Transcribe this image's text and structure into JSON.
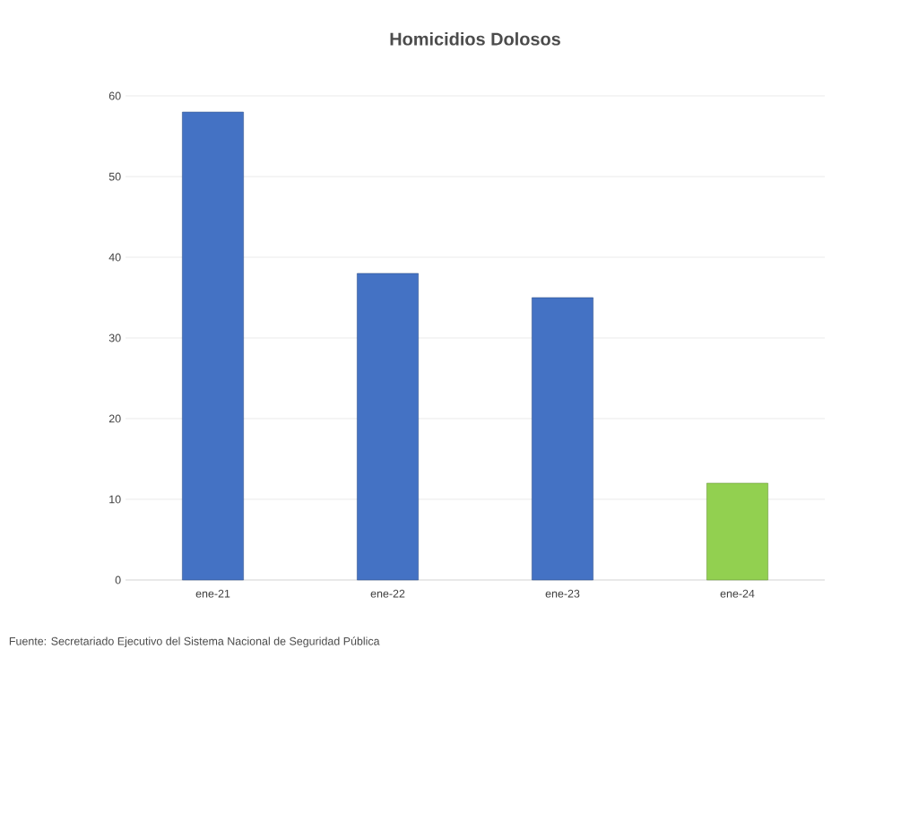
{
  "chart_data": {
    "type": "bar",
    "title": "Homicidios Dolosos",
    "categories": [
      "ene-21",
      "ene-22",
      "ene-23",
      "ene-24"
    ],
    "values": [
      58,
      38,
      35,
      12
    ],
    "colors": [
      "#4472c4",
      "#4472c4",
      "#4472c4",
      "#92d050"
    ],
    "ylim": [
      0,
      60
    ],
    "yticks": [
      0,
      10,
      20,
      30,
      40,
      50,
      60
    ],
    "grid": "y",
    "annotations": [
      "Fuente: Secretariado Ejecutivo del Sistema Nacional de Seguridad Pública"
    ]
  }
}
